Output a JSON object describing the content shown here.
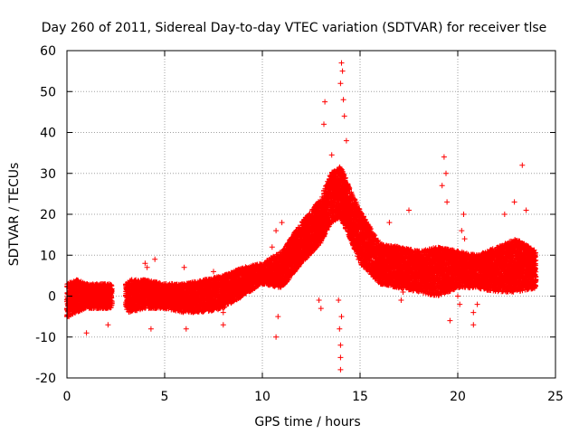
{
  "chart_data": {
    "type": "scatter",
    "title": "Day 260 of 2011, Sidereal Day-to-day VTEC variation (SDTVAR) for receiver tlse",
    "xlabel": "GPS time / hours",
    "ylabel": "SDTVAR / TECUs",
    "xlim": [
      0,
      25
    ],
    "ylim": [
      -20,
      60
    ],
    "xticks": [
      0,
      5,
      10,
      15,
      20,
      25
    ],
    "yticks": [
      -20,
      -10,
      0,
      10,
      20,
      30,
      40,
      50,
      60
    ],
    "xtick_labels": [
      "0",
      "5",
      "10",
      "15",
      "20",
      "25"
    ],
    "ytick_labels": [
      "-20",
      "-10",
      "0",
      "10",
      "20",
      "30",
      "40",
      "50",
      "60"
    ],
    "grid": true,
    "marker": "+",
    "color": "#ff0000",
    "band_lower": [
      [
        0.0,
        -5
      ],
      [
        0.5,
        -4
      ],
      [
        1.0,
        -3
      ],
      [
        2.0,
        -3
      ],
      [
        3.0,
        -3
      ],
      [
        3.2,
        -4
      ],
      [
        4.0,
        -3
      ],
      [
        5.0,
        -3
      ],
      [
        6.0,
        -4
      ],
      [
        7.0,
        -4
      ],
      [
        8.0,
        -3
      ],
      [
        9.0,
        0
      ],
      [
        10.0,
        3
      ],
      [
        11.0,
        2
      ],
      [
        12.0,
        8
      ],
      [
        13.0,
        13
      ],
      [
        13.5,
        18
      ],
      [
        14.0,
        19
      ],
      [
        14.5,
        14
      ],
      [
        15.0,
        8
      ],
      [
        16.0,
        3
      ],
      [
        17.0,
        2
      ],
      [
        18.0,
        1
      ],
      [
        19.0,
        0
      ],
      [
        20.0,
        2
      ],
      [
        21.0,
        2
      ],
      [
        22.0,
        1
      ],
      [
        23.0,
        1
      ],
      [
        24.0,
        2
      ]
    ],
    "band_upper": [
      [
        0.0,
        3
      ],
      [
        0.5,
        4
      ],
      [
        1.0,
        3
      ],
      [
        2.0,
        3
      ],
      [
        3.0,
        3
      ],
      [
        3.2,
        4
      ],
      [
        4.0,
        4
      ],
      [
        5.0,
        3
      ],
      [
        6.0,
        3
      ],
      [
        7.0,
        4
      ],
      [
        8.0,
        5
      ],
      [
        9.0,
        7
      ],
      [
        10.0,
        8
      ],
      [
        11.0,
        11
      ],
      [
        12.0,
        18
      ],
      [
        13.0,
        24
      ],
      [
        13.5,
        30
      ],
      [
        14.0,
        32
      ],
      [
        14.5,
        26
      ],
      [
        15.0,
        21
      ],
      [
        16.0,
        13
      ],
      [
        17.0,
        12
      ],
      [
        18.0,
        11
      ],
      [
        19.0,
        12
      ],
      [
        20.0,
        11
      ],
      [
        21.0,
        10
      ],
      [
        22.0,
        12
      ],
      [
        23.0,
        14
      ],
      [
        24.0,
        11
      ]
    ],
    "gaps": [
      [
        2.3,
        3.0
      ]
    ],
    "spikes": [
      [
        14.05,
        57
      ],
      [
        14.1,
        55
      ],
      [
        14.0,
        52
      ],
      [
        14.15,
        48
      ],
      [
        14.2,
        44
      ],
      [
        14.3,
        38
      ],
      [
        13.2,
        47.5
      ],
      [
        13.15,
        42
      ],
      [
        13.55,
        34.5
      ],
      [
        14.0,
        -18
      ],
      [
        14.0,
        -15
      ],
      [
        14.0,
        -12
      ],
      [
        13.95,
        -8
      ],
      [
        14.05,
        -5
      ],
      [
        13.9,
        -1
      ],
      [
        19.3,
        34
      ],
      [
        19.4,
        30
      ],
      [
        19.2,
        27
      ],
      [
        19.45,
        23
      ],
      [
        20.3,
        20
      ],
      [
        20.2,
        16
      ],
      [
        20.35,
        14
      ],
      [
        23.3,
        32
      ],
      [
        22.9,
        23
      ],
      [
        23.5,
        21
      ],
      [
        22.4,
        20
      ],
      [
        17.5,
        21
      ],
      [
        16.5,
        18
      ],
      [
        11.0,
        18
      ],
      [
        10.7,
        16
      ],
      [
        10.5,
        12
      ],
      [
        10.8,
        -5
      ],
      [
        10.7,
        -10
      ],
      [
        13.0,
        -3
      ],
      [
        12.9,
        -1
      ],
      [
        1.0,
        -9
      ],
      [
        2.1,
        -7
      ],
      [
        3.2,
        -1
      ],
      [
        4.1,
        7
      ],
      [
        4.5,
        9
      ],
      [
        4.3,
        -8
      ],
      [
        4.0,
        8
      ],
      [
        6.0,
        7
      ],
      [
        6.1,
        -8
      ],
      [
        7.5,
        6
      ],
      [
        8.0,
        -4
      ],
      [
        8.0,
        -7
      ],
      [
        20.0,
        0
      ],
      [
        20.1,
        -2
      ],
      [
        19.6,
        -6
      ],
      [
        20.8,
        -4
      ],
      [
        20.8,
        -7
      ],
      [
        21.0,
        -2
      ],
      [
        17.1,
        -1
      ],
      [
        17.2,
        1
      ],
      [
        23.8,
        5
      ],
      [
        24.0,
        4
      ],
      [
        0.0,
        -3
      ],
      [
        0.1,
        -5
      ]
    ]
  }
}
